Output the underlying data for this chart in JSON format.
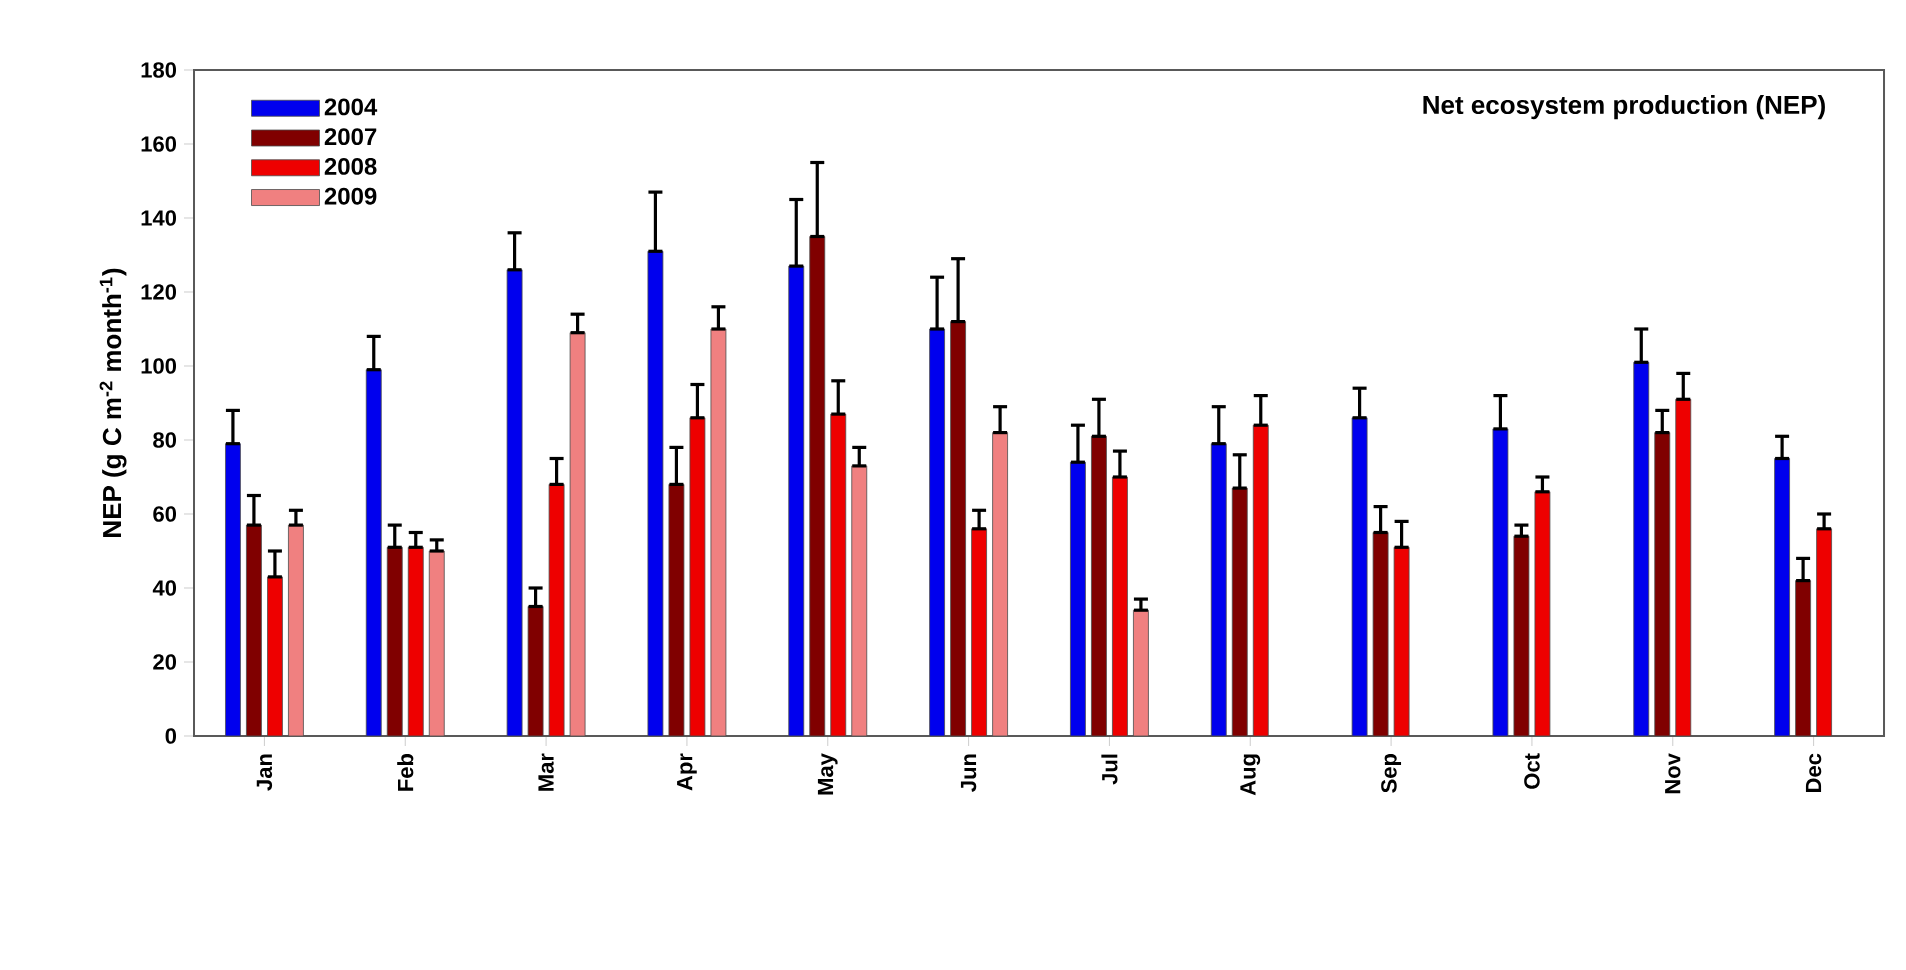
{
  "chart_data": {
    "type": "bar",
    "title": "Net ecosystem production (NEP)",
    "ylabel": "NEP (g C m$^{-2}$ month$^{-1}$)",
    "categories": [
      "Jan",
      "Feb",
      "Mar",
      "Apr",
      "May",
      "Jun",
      "Jul",
      "Aug",
      "Sep",
      "Oct",
      "Nov",
      "Dec"
    ],
    "ylim": [
      0,
      180
    ],
    "yticks": [
      0,
      20,
      40,
      60,
      80,
      100,
      120,
      140,
      160,
      180
    ],
    "legend": "top left",
    "grid": false,
    "series": [
      {
        "name": "2004",
        "color": "#0000ee",
        "values": [
          79,
          99,
          126,
          131,
          127,
          110,
          74,
          79,
          86,
          83,
          101,
          75
        ],
        "errors": [
          [
            79,
            88
          ],
          [
            99,
            108
          ],
          [
            126,
            136
          ],
          [
            131,
            147
          ],
          [
            127,
            145
          ],
          [
            110,
            124
          ],
          [
            74,
            84
          ],
          [
            79,
            89
          ],
          [
            86,
            94
          ],
          [
            83,
            92
          ],
          [
            101,
            110
          ],
          [
            75,
            81
          ]
        ]
      },
      {
        "name": "2007",
        "color": "#800000",
        "values": [
          57,
          51,
          35,
          68,
          135,
          112,
          81,
          67,
          55,
          54,
          82,
          42
        ],
        "errors": [
          [
            57,
            65
          ],
          [
            51,
            57
          ],
          [
            35,
            40
          ],
          [
            68,
            78
          ],
          [
            135,
            155
          ],
          [
            112,
            129
          ],
          [
            81,
            91
          ],
          [
            67,
            76
          ],
          [
            55,
            62
          ],
          [
            54,
            57
          ],
          [
            82,
            88
          ],
          [
            42,
            48
          ]
        ]
      },
      {
        "name": "2008",
        "color": "#ee0000",
        "values": [
          43,
          51,
          68,
          86,
          87,
          56,
          70,
          84,
          51,
          66,
          91,
          56
        ],
        "errors": [
          [
            43,
            50
          ],
          [
            51,
            55
          ],
          [
            68,
            75
          ],
          [
            86,
            95
          ],
          [
            87,
            96
          ],
          [
            56,
            61
          ],
          [
            70,
            77
          ],
          [
            84,
            92
          ],
          [
            51,
            58
          ],
          [
            66,
            70
          ],
          [
            91,
            98
          ],
          [
            56,
            60
          ]
        ]
      },
      {
        "name": "2009",
        "color": "#f08080",
        "values": [
          57,
          50,
          109,
          110,
          73,
          82,
          34,
          null,
          null,
          null,
          null,
          null
        ],
        "errors": [
          [
            57,
            61
          ],
          [
            50,
            53
          ],
          [
            109,
            114
          ],
          [
            110,
            116
          ],
          [
            73,
            78
          ],
          [
            82,
            89
          ],
          [
            34,
            37
          ],
          null,
          null,
          null,
          null,
          null
        ]
      }
    ]
  }
}
